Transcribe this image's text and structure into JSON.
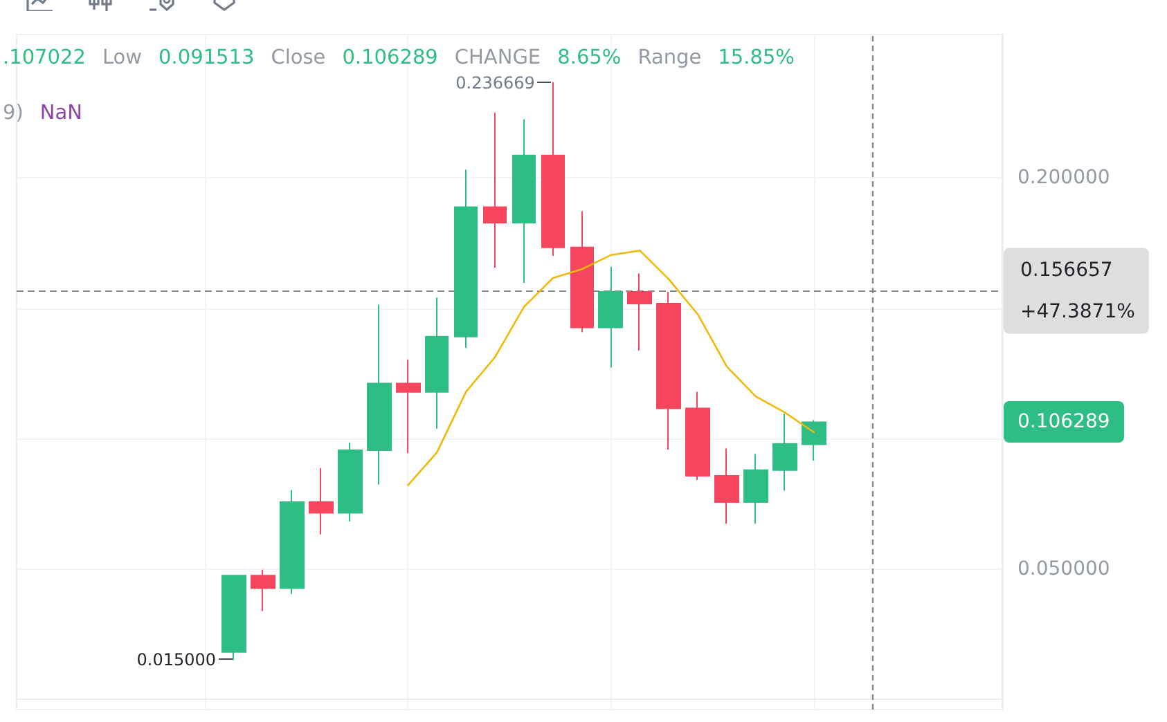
{
  "chart_data": {
    "type": "candlestick",
    "categories": [
      null,
      null,
      null,
      null,
      null,
      null,
      null,
      null,
      null,
      null,
      null,
      null,
      null,
      null,
      null,
      null,
      null,
      null,
      null,
      null,
      null,
      null,
      null,
      null,
      null,
      null,
      null,
      null,
      null,
      null,
      null,
      null,
      null,
      null
    ],
    "ohlc": [
      null,
      null,
      null,
      null,
      null,
      null,
      null,
      [
        0.0181,
        0.0474,
        0.015,
        0.0474
      ],
      [
        0.0474,
        0.0497,
        0.0338,
        0.0426
      ],
      [
        0.0426,
        0.0802,
        0.0403,
        0.0756
      ],
      [
        0.0756,
        0.0886,
        0.0632,
        0.0715
      ],
      [
        0.0715,
        0.0984,
        0.0682,
        0.0955
      ],
      [
        0.0955,
        0.1514,
        0.0823,
        0.1211
      ],
      [
        0.1211,
        0.1303,
        0.0944,
        0.1179
      ],
      [
        0.1179,
        0.1541,
        0.1038,
        0.1391
      ],
      [
        0.1391,
        0.2031,
        0.1347,
        0.1888
      ],
      [
        0.1888,
        0.2251,
        0.1656,
        0.1828
      ],
      [
        0.1828,
        0.2225,
        0.1597,
        0.2086
      ],
      [
        0.2086,
        0.236669,
        0.1701,
        0.1733
      ],
      [
        0.1733,
        0.1872,
        0.1408,
        0.1426
      ],
      [
        0.1426,
        0.1659,
        0.1272,
        0.1563
      ],
      [
        0.1563,
        0.1634,
        0.1338,
        0.1518
      ],
      [
        0.1518,
        0.1563,
        0.0957,
        0.1116
      ],
      [
        0.1116,
        0.1179,
        0.0841,
        0.0857
      ],
      [
        0.0857,
        0.0962,
        0.0673,
        0.0756
      ],
      [
        0.0756,
        0.0941,
        0.0673,
        0.0879
      ],
      [
        0.0879,
        0.1095,
        0.08,
        0.098
      ],
      [
        0.0978,
        0.107022,
        0.091513,
        0.106289
      ],
      null,
      null,
      null,
      null,
      null,
      null
    ],
    "colors": [
      null,
      null,
      null,
      null,
      null,
      null,
      null,
      "#2ebd85",
      "#f6465d",
      "#2ebd85",
      "#f6465d",
      "#2ebd85",
      "#2ebd85",
      "#f6465d",
      "#2ebd85",
      "#2ebd85",
      "#f6465d",
      "#2ebd85",
      "#f6465d",
      "#f6465d",
      "#2ebd85",
      "#f6465d",
      "#f6465d",
      "#f6465d",
      "#f6465d",
      "#2ebd85",
      "#2ebd85",
      "#2ebd85",
      null,
      null,
      null,
      null,
      null,
      null
    ],
    "series": [
      {
        "type": "line",
        "color": "#f0b90b",
        "values": [
          null,
          null,
          null,
          null,
          null,
          null,
          null,
          null,
          null,
          null,
          null,
          null,
          null,
          0.0821,
          0.0947,
          0.1179,
          0.1312,
          0.1505,
          0.1616,
          0.165,
          0.1704,
          0.1721,
          0.1611,
          0.1476,
          0.1276,
          0.1161,
          0.11,
          0.1024,
          null,
          null,
          null,
          null,
          null,
          null
        ]
      }
    ],
    "ylim": [
      -0.004,
      0.255
    ],
    "yticks": [
      {
        "value": 0.05,
        "label": "0.050000"
      },
      {
        "value": 0.1,
        "label": null
      },
      {
        "value": 0.15,
        "label": null
      },
      {
        "value": 0.2,
        "label": "0.200000"
      }
    ],
    "grid": true,
    "tick_labels": "y",
    "ref_lines": [
      {
        "axis": "y",
        "value": 0.156657,
        "label": "0.156657\n+47.3871%",
        "color": "#888888",
        "line_style": "dashed"
      }
    ],
    "annotations": [
      ".107022",
      "Low",
      "0.091513",
      "Close",
      "0.106289",
      "CHANGE",
      "8.65%",
      "Range",
      "15.85%",
      "9)",
      "NaN",
      "0.236669",
      "0.015000",
      "0.106289"
    ]
  }
}
